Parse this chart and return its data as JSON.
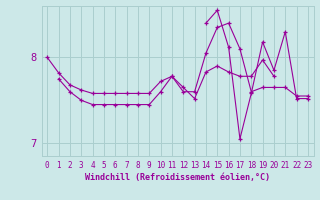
{
  "xlabel": "Windchill (Refroidissement éolien,°C)",
  "background_color": "#cce8e8",
  "grid_color": "#aacece",
  "line_color": "#990099",
  "xlim": [
    -0.5,
    23.5
  ],
  "ylim": [
    6.85,
    8.6
  ],
  "yticks": [
    7,
    8
  ],
  "xticks": [
    0,
    1,
    2,
    3,
    4,
    5,
    6,
    7,
    8,
    9,
    10,
    11,
    12,
    13,
    14,
    15,
    16,
    17,
    18,
    19,
    20,
    21,
    22,
    23
  ],
  "hours": [
    0,
    1,
    2,
    3,
    4,
    5,
    6,
    7,
    8,
    9,
    10,
    11,
    12,
    13,
    14,
    15,
    16,
    17,
    18,
    19,
    20,
    21,
    22,
    23
  ],
  "series1": [
    8.0,
    7.82,
    7.68,
    7.62,
    7.58,
    7.58,
    7.58,
    7.58,
    7.58,
    7.58,
    7.72,
    7.78,
    7.65,
    7.52,
    7.83,
    7.9,
    7.83,
    7.78,
    7.78,
    7.97,
    7.78,
    null,
    null,
    null
  ],
  "series2": [
    null,
    7.75,
    7.6,
    7.5,
    7.45,
    7.45,
    7.45,
    7.45,
    7.45,
    7.45,
    7.6,
    7.78,
    7.6,
    7.6,
    8.05,
    8.35,
    8.4,
    8.1,
    7.6,
    7.65,
    7.65,
    7.65,
    7.55,
    7.55
  ],
  "series3": [
    null,
    null,
    null,
    null,
    null,
    null,
    null,
    null,
    null,
    null,
    null,
    null,
    null,
    null,
    8.4,
    8.55,
    8.12,
    7.05,
    7.58,
    8.18,
    7.85,
    8.3,
    7.52,
    7.52
  ]
}
